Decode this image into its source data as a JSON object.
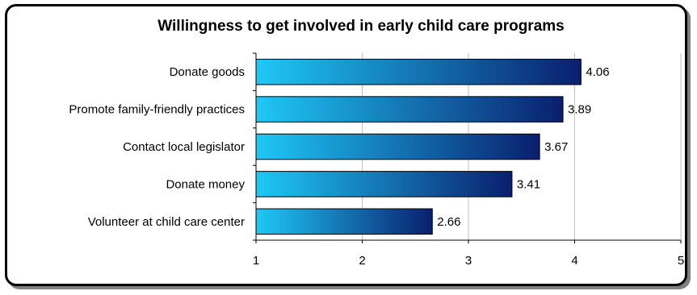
{
  "chart_data": {
    "type": "bar",
    "orientation": "horizontal",
    "title": "Willingness to get involved in early child care programs",
    "categories": [
      "Donate goods",
      "Promote family-friendly practices",
      "Contact local legislator",
      "Donate money",
      "Volunteer at child care center"
    ],
    "values": [
      4.06,
      3.89,
      3.67,
      3.41,
      2.66
    ],
    "data_labels": [
      "4.06",
      "3.89",
      "3.67",
      "3.41",
      "2.66"
    ],
    "xlim": [
      1,
      5
    ],
    "xticks": [
      "1",
      "2",
      "3",
      "4",
      "5"
    ],
    "grid": true,
    "legend": "none",
    "bar_gradient": [
      "#1ec8f6",
      "#0a1f6e"
    ]
  }
}
